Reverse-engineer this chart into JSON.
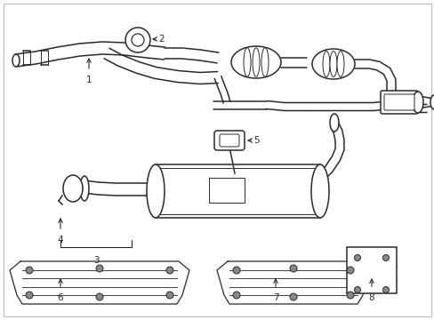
{
  "background_color": "#ffffff",
  "line_color": "#2a2a2a",
  "border_color": "#bbbbbb",
  "fig_width": 4.89,
  "fig_height": 3.6,
  "dpi": 100
}
